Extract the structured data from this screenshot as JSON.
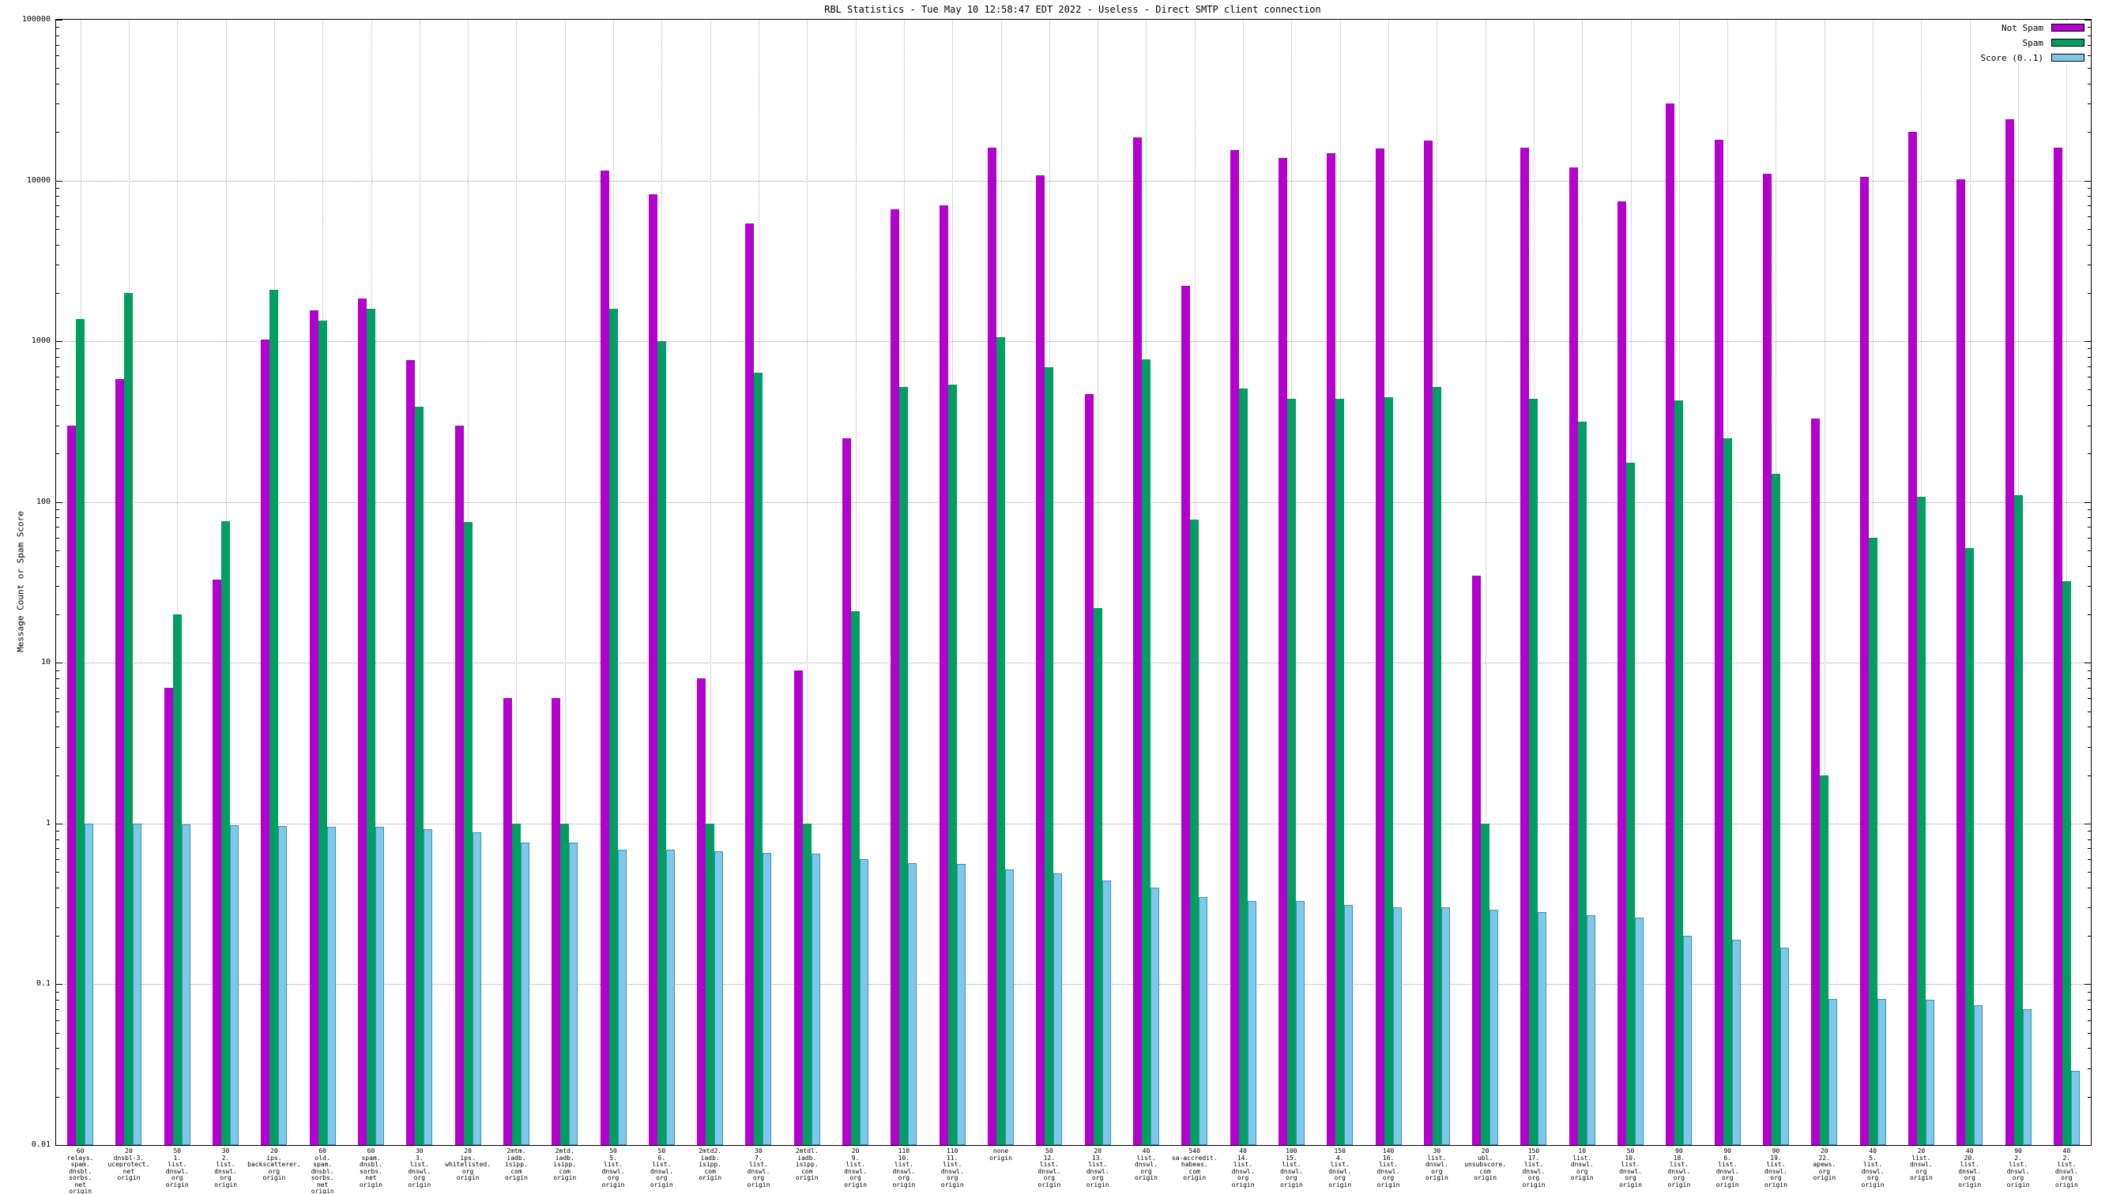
{
  "title": "RBL Statistics - Tue May 10 12:58:47 EDT 2022 - Useless - Direct SMTP client connection",
  "ylabel": "Message Count or Spam Score",
  "legend": {
    "position": "top-right",
    "entries": [
      {
        "label": "Not Spam",
        "color": "#b400cd"
      },
      {
        "label": "Spam",
        "color": "#009e60"
      },
      {
        "label": "Score (0..1)",
        "color": "#7ec9ea"
      }
    ]
  },
  "chart_data": {
    "type": "bar",
    "y_scale": "log",
    "grid": true,
    "ylim": [
      0.01,
      100000
    ],
    "ytick_values": [
      100000,
      10000,
      1000,
      100,
      10,
      1,
      0.1,
      0.01
    ],
    "ytick_labels": [
      "100000",
      "10000",
      "1000",
      "100",
      "10",
      "1",
      "0.1",
      "0.01"
    ],
    "legend_position": "top-right",
    "categories": [
      "60\nrelays.\nspam.\ndnsbl.\nsorbs.\nnet\norigin",
      "20\ndnsbl-3.\nuceprotect.\nnet\norigin",
      "50\n1.\nlist.\ndnswl.\norg\norigin",
      "30\n2.\nlist.\ndnswl.\norg\norigin",
      "20\nips.\nbackscatterer.\norg\norigin",
      "60\nold.\nspam.\ndnsbl.\nsorbs.\nnet\norigin",
      "60\nspam.\ndnsbl.\nsorbs.\nnet\norigin",
      "30\n3.\nlist.\ndnswl.\norg\norigin",
      "20\nips.\nwhitelisted.\norg\norigin",
      "2mtm.\niadb.\nisipp.\ncom\norigin",
      "2mtd.\niadb.\nisipp.\ncom\norigin",
      "50\n5.\nlist.\ndnswl.\norg\norigin",
      "50\n6.\nlist.\ndnswl.\norg\norigin",
      "2mtd2.\niadb.\nisipp.\ncom\norigin",
      "30\n7.\nlist.\ndnswl.\norg\norigin",
      "2mtdl.\niadb.\nisipp.\ncom\norigin",
      "20\n9.\nlist.\ndnswl.\norg\norigin",
      "110\n10.\nlist.\ndnswl.\norg\norigin",
      "110\n11.\nlist.\ndnswl.\norg\norigin",
      "none\norigin",
      "50\n12.\nlist.\ndnswl.\norg\norigin",
      "20\n13.\nlist.\ndnswl.\norg\norigin",
      "40\nlist.\ndnswl.\norg\norigin",
      "540\nsa-accredit.\nhabeas.\ncom\norigin",
      "40\n14.\nlist.\ndnswl.\norg\norigin",
      "100\n15.\nlist.\ndnswl.\norg\norigin",
      "150\n4.\nlist.\ndnswl.\norg\norigin",
      "140\n16.\nlist.\ndnswl.\norg\norigin",
      "30\nlist.\ndnswl.\norg\norigin",
      "20\nubl.\nunsubscore.\ncom\norigin",
      "150\n17.\nlist.\ndnswl.\norg\norigin",
      "10\nlist.\ndnswl.\norg\norigin",
      "50\n10.\nlist.\ndnswl.\norg\norigin",
      "90\n18.\nlist.\ndnswl.\norg\norigin",
      "90\n6.\nlist.\ndnswl.\norg\norigin",
      "90\n19.\nlist.\ndnswl.\norg\norigin",
      "20\n22.\napews.\norg\norigin",
      "40\n5.\nlist.\ndnswl.\norg\norigin",
      "20\nlist.\ndnswl.\norg\norigin",
      "40\n20.\nlist.\ndnswl.\norg\norigin",
      "90\n2.\nlist.\ndnswl.\norg\norigin",
      "40\n2.\nlist.\ndnswl.\norg\norigin"
    ],
    "series": [
      {
        "name": "Not Spam",
        "color": "#b400cd",
        "values": [
          300,
          580,
          7,
          33,
          1020,
          1550,
          1850,
          760,
          300,
          6,
          6,
          11500,
          8200,
          8,
          5400,
          9,
          250,
          6600,
          7000,
          16000,
          10800,
          470,
          18500,
          2200,
          15500,
          13800,
          14800,
          15800,
          17800,
          35,
          16000,
          12000,
          7400,
          30000,
          18000,
          11000,
          330,
          10500,
          20000,
          10200,
          24000,
          16000
        ]
      },
      {
        "name": "Spam",
        "color": "#009e60",
        "values": [
          1370,
          2000,
          20,
          76,
          2100,
          1350,
          1600,
          390,
          75,
          1,
          1,
          1600,
          1000,
          1,
          640,
          1,
          21,
          520,
          540,
          1060,
          690,
          22,
          770,
          78,
          510,
          440,
          440,
          450,
          520,
          1,
          440,
          315,
          175,
          430,
          250,
          150,
          2,
          60,
          108,
          52,
          110,
          32
        ]
      },
      {
        "name": "Score (0..1)",
        "color": "#7ec9ea",
        "border": "#3c8fba",
        "values": [
          1.0,
          1.0,
          0.99,
          0.98,
          0.97,
          0.95,
          0.95,
          0.92,
          0.88,
          0.76,
          0.76,
          0.69,
          0.69,
          0.67,
          0.66,
          0.65,
          0.6,
          0.57,
          0.56,
          0.52,
          0.49,
          0.44,
          0.4,
          0.35,
          0.33,
          0.33,
          0.31,
          0.3,
          0.3,
          0.29,
          0.28,
          0.27,
          0.26,
          0.2,
          0.19,
          0.17,
          0.081,
          0.081,
          0.08,
          0.074,
          0.07,
          0.029
        ]
      }
    ]
  }
}
